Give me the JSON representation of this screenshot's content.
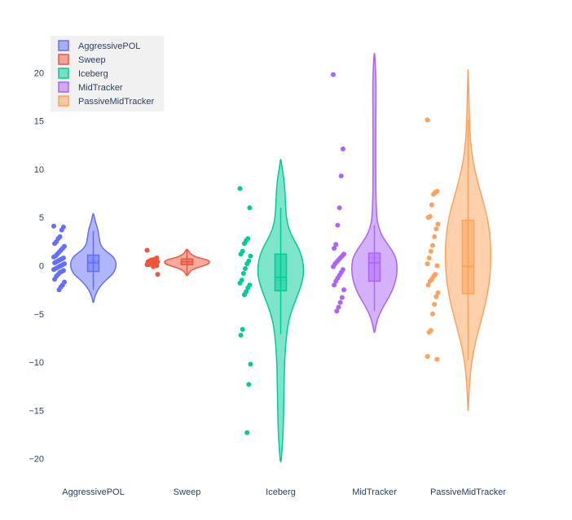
{
  "chart_data": {
    "type": "violin",
    "title": "",
    "xlabel": "",
    "ylabel": "",
    "ylim": [
      -22,
      23
    ],
    "yticks": [
      -20,
      -15,
      -10,
      -5,
      0,
      5,
      10,
      15,
      20
    ],
    "show_points": true,
    "show_box": true,
    "legend_position": "top-left",
    "series": [
      {
        "name": "AggressivePOL",
        "color": "#636efa",
        "violin_range": [
          -3.8,
          5.4
        ],
        "density": [
          [
            -3.8,
            0.02
          ],
          [
            -3.2,
            0.06
          ],
          [
            -2.5,
            0.2
          ],
          [
            -2.0,
            0.35
          ],
          [
            -1.5,
            0.55
          ],
          [
            -1.0,
            0.8
          ],
          [
            -0.5,
            0.95
          ],
          [
            0.0,
            1.0
          ],
          [
            0.5,
            0.98
          ],
          [
            1.0,
            0.85
          ],
          [
            1.5,
            0.55
          ],
          [
            2.0,
            0.35
          ],
          [
            2.5,
            0.28
          ],
          [
            3.0,
            0.25
          ],
          [
            3.5,
            0.22
          ],
          [
            4.0,
            0.17
          ],
          [
            4.5,
            0.1
          ],
          [
            5.0,
            0.05
          ],
          [
            5.4,
            0.01
          ]
        ],
        "box": {
          "q1": -0.6,
          "median": 0.3,
          "mean": 0.5,
          "q3": 1.1,
          "whisker_low": -2.5,
          "whisker_high": 3.6
        },
        "points": [
          4.1,
          4.0,
          3.7,
          3.0,
          2.8,
          2.5,
          2.3,
          2.0,
          1.8,
          1.6,
          1.4,
          1.2,
          1.0,
          0.9,
          0.8,
          0.7,
          0.6,
          0.5,
          0.4,
          0.3,
          0.2,
          0.1,
          0.0,
          -0.1,
          -0.2,
          -0.3,
          -0.4,
          -0.5,
          -0.6,
          -0.7,
          -0.9,
          -1.1,
          -1.4,
          -1.7,
          -2.0,
          -2.2,
          -2.5
        ]
      },
      {
        "name": "Sweep",
        "color": "#ef553b",
        "violin_range": [
          -1.0,
          1.7
        ],
        "density": [
          [
            -1.0,
            0.03
          ],
          [
            -0.5,
            0.15
          ],
          [
            -0.2,
            0.45
          ],
          [
            0.0,
            0.75
          ],
          [
            0.2,
            0.95
          ],
          [
            0.4,
            1.0
          ],
          [
            0.6,
            0.9
          ],
          [
            0.8,
            0.55
          ],
          [
            1.0,
            0.3
          ],
          [
            1.3,
            0.12
          ],
          [
            1.7,
            0.02
          ]
        ],
        "box": {
          "q1": 0.1,
          "median": 0.4,
          "mean": 0.4,
          "q3": 0.7,
          "whisker_low": -0.9,
          "whisker_high": 1.6
        },
        "points": [
          1.6,
          0.8,
          0.7,
          0.6,
          0.5,
          0.5,
          0.4,
          0.4,
          0.3,
          0.3,
          0.2,
          0.2,
          0.1,
          0.1,
          0.0,
          0.0,
          -0.1,
          0.6,
          0.4,
          0.2,
          -0.9
        ]
      },
      {
        "name": "Iceberg",
        "color": "#00cc96",
        "violin_range": [
          -20.3,
          11.0
        ],
        "density": [
          [
            -20.3,
            0.02
          ],
          [
            -19,
            0.06
          ],
          [
            -17.5,
            0.1
          ],
          [
            -16,
            0.12
          ],
          [
            -14,
            0.14
          ],
          [
            -12,
            0.15
          ],
          [
            -10,
            0.17
          ],
          [
            -8,
            0.22
          ],
          [
            -6,
            0.32
          ],
          [
            -4.5,
            0.5
          ],
          [
            -3,
            0.75
          ],
          [
            -2,
            0.9
          ],
          [
            -1,
            1.0
          ],
          [
            0,
            1.0
          ],
          [
            1,
            0.92
          ],
          [
            2,
            0.75
          ],
          [
            3,
            0.5
          ],
          [
            4,
            0.33
          ],
          [
            5,
            0.25
          ],
          [
            6,
            0.22
          ],
          [
            7,
            0.2
          ],
          [
            8,
            0.18
          ],
          [
            9,
            0.14
          ],
          [
            10,
            0.07
          ],
          [
            11,
            0.01
          ]
        ],
        "box": {
          "q1": -2.6,
          "median": -1.2,
          "mean": -1.5,
          "q3": 1.2,
          "whisker_low": -7.1,
          "whisker_high": 6.0
        },
        "points": [
          8.0,
          6.0,
          2.8,
          2.6,
          2.3,
          1.5,
          1.2,
          1.0,
          0.5,
          0.2,
          -0.3,
          -0.8,
          -1.5,
          -1.8,
          -2.0,
          -2.3,
          -2.7,
          -3.0,
          -6.6,
          -7.2,
          -10.2,
          -12.3,
          -17.3
        ]
      },
      {
        "name": "MidTracker",
        "color": "#ab63fa",
        "violin_range": [
          -6.9,
          22.0
        ],
        "density": [
          [
            -6.9,
            0.02
          ],
          [
            -6,
            0.08
          ],
          [
            -5,
            0.22
          ],
          [
            -4,
            0.45
          ],
          [
            -3,
            0.7
          ],
          [
            -2,
            0.88
          ],
          [
            -1,
            0.98
          ],
          [
            0,
            1.0
          ],
          [
            1,
            0.92
          ],
          [
            2,
            0.65
          ],
          [
            3,
            0.35
          ],
          [
            4,
            0.18
          ],
          [
            5,
            0.1
          ],
          [
            7,
            0.07
          ],
          [
            9,
            0.06
          ],
          [
            11,
            0.06
          ],
          [
            13,
            0.06
          ],
          [
            15,
            0.06
          ],
          [
            17,
            0.07
          ],
          [
            19,
            0.07
          ],
          [
            20.5,
            0.05
          ],
          [
            22,
            0.01
          ]
        ],
        "box": {
          "q1": -1.6,
          "median": 0.3,
          "mean": 0.8,
          "q3": 1.3,
          "whisker_low": -4.7,
          "whisker_high": 4.2
        },
        "points": [
          19.8,
          12.1,
          9.3,
          6.0,
          4.2,
          2.2,
          1.8,
          1.2,
          1.0,
          0.8,
          0.6,
          0.4,
          0.2,
          -0.1,
          -0.4,
          -0.7,
          -1.0,
          -1.3,
          -1.6,
          -2.0,
          -2.5,
          -3.3,
          -3.8,
          -4.3,
          -4.7
        ]
      },
      {
        "name": "PassiveMidTracker",
        "color": "#ffa15a",
        "violin_range": [
          -15.0,
          20.3
        ],
        "density": [
          [
            -15,
            0.01
          ],
          [
            -13,
            0.04
          ],
          [
            -11,
            0.1
          ],
          [
            -9,
            0.22
          ],
          [
            -7,
            0.42
          ],
          [
            -5,
            0.65
          ],
          [
            -3,
            0.85
          ],
          [
            -1,
            0.97
          ],
          [
            1,
            1.0
          ],
          [
            3,
            0.97
          ],
          [
            5,
            0.85
          ],
          [
            7,
            0.62
          ],
          [
            9,
            0.38
          ],
          [
            11,
            0.2
          ],
          [
            13,
            0.1
          ],
          [
            15,
            0.06
          ],
          [
            17,
            0.04
          ],
          [
            19,
            0.02
          ],
          [
            20.3,
            0.005
          ]
        ],
        "box": {
          "q1": -2.9,
          "median": -0.1,
          "mean": 0.0,
          "q3": 4.7,
          "whisker_low": -9.8,
          "whisker_high": 15.1
        },
        "points": [
          15.1,
          7.7,
          7.6,
          7.4,
          6.3,
          5.1,
          5.0,
          4.3,
          3.8,
          3.0,
          2.1,
          1.5,
          0.8,
          0.2,
          0.0,
          -0.9,
          -1.1,
          -1.4,
          -1.6,
          -2.0,
          -2.8,
          -3.2,
          -4.0,
          -5.0,
          -6.7,
          -6.9,
          -9.4,
          -9.7
        ]
      }
    ]
  }
}
